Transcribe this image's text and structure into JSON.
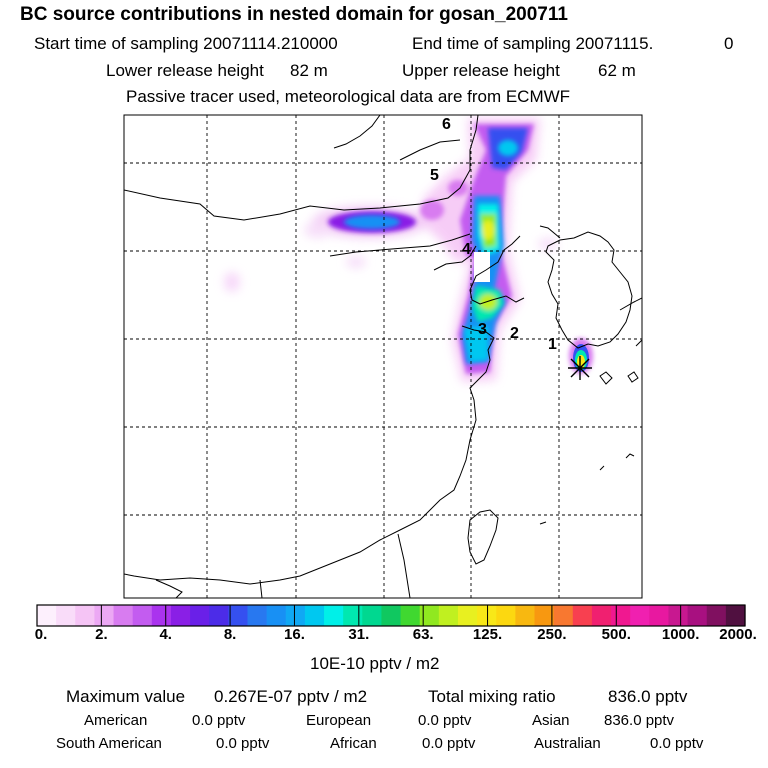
{
  "header": {
    "title": "BC  source contributions in nested domain for gosan_200711",
    "start_label": "Start time of sampling 20071114.210000",
    "end_label": "End time of sampling 20071115.",
    "end_value": "0",
    "lower_label": "Lower release height",
    "lower_value": "82 m",
    "upper_label": "Upper release height",
    "upper_value": "62 m",
    "tracer_note": "Passive tracer used, meteorological data are from ECMWF"
  },
  "map": {
    "markers": [
      "1",
      "2",
      "3",
      "4",
      "5",
      "6"
    ],
    "receptor_icon": "asterisk-receptor-icon"
  },
  "colorbar": {
    "ticks": [
      "0.",
      "2.",
      "4.",
      "8.",
      "16.",
      "31.",
      "63.",
      "125.",
      "250.",
      "500.",
      "1000.",
      "2000."
    ],
    "units": "10E-10 pptv / m2",
    "colors": [
      "#fdf0fd",
      "#f9dcf9",
      "#f5c4f5",
      "#eca8f4",
      "#d87cf0",
      "#c35cf0",
      "#aa33ee",
      "#8a1fe6",
      "#6a20e8",
      "#4c2ce8",
      "#3550f0",
      "#2878f0",
      "#1890f4",
      "#10a8f4",
      "#00c8f0",
      "#00f0e8",
      "#00e8b0",
      "#00d890",
      "#10c860",
      "#40d830",
      "#90e820",
      "#c0f020",
      "#e8f020",
      "#f8e818",
      "#fcd810",
      "#f8b810",
      "#f89810",
      "#f87830",
      "#f84050",
      "#f02070",
      "#f01890",
      "#f020b0",
      "#e818a0",
      "#c81890",
      "#a81080",
      "#801060",
      "#501040"
    ]
  },
  "stats": {
    "max_label": "Maximum value",
    "max_value": "0.267E-07 pptv / m2",
    "total_label": "Total mixing ratio",
    "total_value": "836.0 pptv"
  },
  "regions": [
    {
      "name": "American",
      "value": "0.0 pptv"
    },
    {
      "name": "European",
      "value": "0.0 pptv"
    },
    {
      "name": "Asian",
      "value": "836.0 pptv"
    },
    {
      "name": "South American",
      "value": "0.0 pptv"
    },
    {
      "name": "African",
      "value": "0.0 pptv"
    },
    {
      "name": "Australian",
      "value": "0.0 pptv"
    }
  ]
}
